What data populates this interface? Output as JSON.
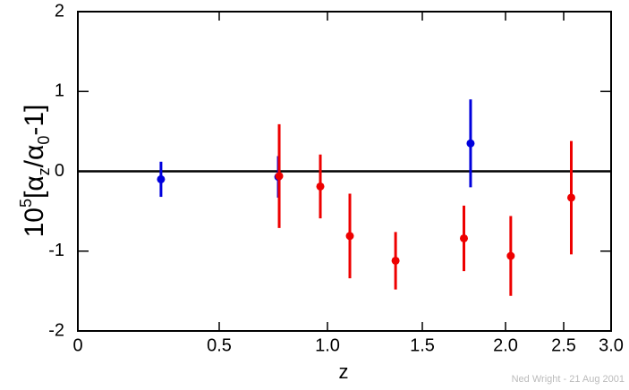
{
  "chart_data": {
    "type": "scatter",
    "xlabel": "z",
    "ylabel_parts": [
      {
        "text": "10"
      },
      {
        "text": "5",
        "style": "sup"
      },
      {
        "text": "[α"
      },
      {
        "text": "z",
        "style": "sub"
      },
      {
        "text": "/α"
      },
      {
        "text": "0",
        "style": "sub"
      },
      {
        "text": "-1]"
      }
    ],
    "credit": "Ned Wright - 21 Aug 2001",
    "xlim": [
      0,
      3
    ],
    "xticks": [
      0,
      0.5,
      {
        "value": 1,
        "label": "1.0"
      },
      1.5,
      {
        "value": 2,
        "label": "2.0"
      },
      2.5,
      {
        "value": 3,
        "label": "3.0"
      }
    ],
    "ylim": [
      -2,
      2
    ],
    "yticks": [
      -2,
      -1,
      0,
      1,
      2
    ],
    "zero_line": true,
    "series": [
      {
        "color": "#0000dd",
        "x": [
          0.294,
          0.773,
          1.79
        ],
        "values": [
          -0.1,
          -0.07,
          0.35
        ],
        "errors": [
          0.22,
          0.26,
          0.55
        ]
      },
      {
        "color": "#ee0000",
        "x": [
          0.777,
          0.967,
          1.118,
          1.359,
          1.75,
          2.045,
          2.58
        ],
        "values": [
          -0.06,
          -0.19,
          -0.81,
          -1.12,
          -0.84,
          -1.06,
          -0.33
        ],
        "errors": [
          0.65,
          0.4,
          0.53,
          0.36,
          0.41,
          0.5,
          0.71
        ]
      }
    ]
  }
}
